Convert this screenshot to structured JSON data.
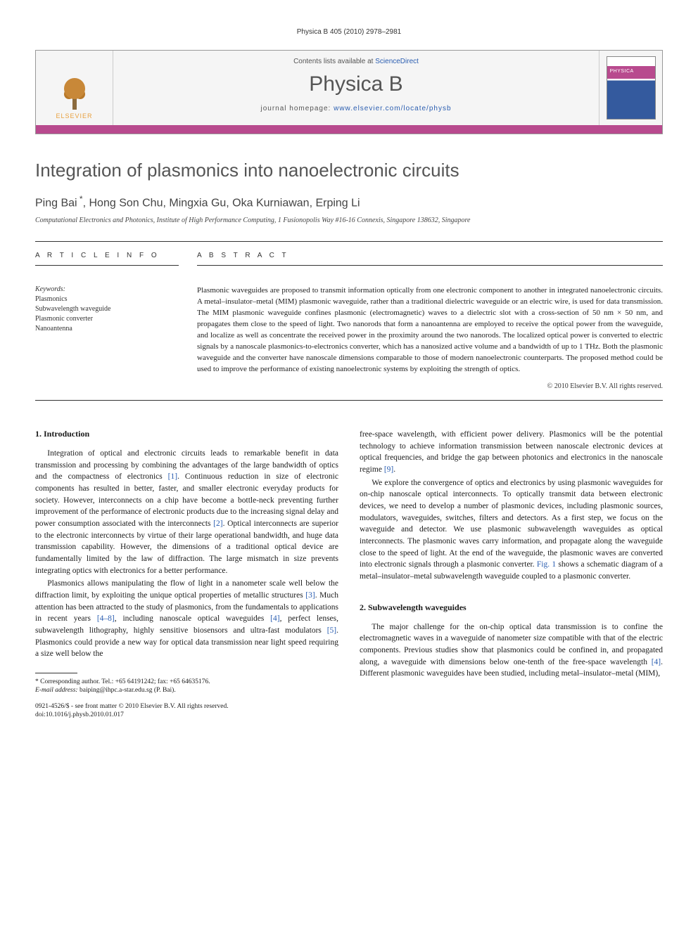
{
  "running_header": "Physica B 405 (2010) 2978–2981",
  "banner": {
    "publisher": "ELSEVIER",
    "contents_prefix": "Contents lists available at ",
    "contents_link": "ScienceDirect",
    "journal_title": "Physica B",
    "homepage_prefix": "journal homepage: ",
    "homepage_url": "www.elsevier.com/locate/physb",
    "cover_label": "PHYSICA"
  },
  "colors": {
    "accent_bar": "#b84a8e",
    "link": "#2a5db0",
    "elsevier_orange": "#e8a03e",
    "text": "#1a1a1a",
    "muted": "#555555"
  },
  "article": {
    "title": "Integration of plasmonics into nanoelectronic circuits",
    "authors_html": "Ping Bai *, Hong Son Chu, Mingxia Gu, Oka Kurniawan, Erping Li",
    "affiliation": "Computational Electronics and Photonics, Institute of High Performance Computing, 1 Fusionopolis Way #16-16 Connexis, Singapore 138632, Singapore"
  },
  "info": {
    "label": "A R T I C L E  I N F O",
    "keywords_label": "Keywords:",
    "keywords": [
      "Plasmonics",
      "Subwavelength waveguide",
      "Plasmonic converter",
      "Nanoantenna"
    ]
  },
  "abstract": {
    "label": "A B S T R A C T",
    "text": "Plasmonic waveguides are proposed to transmit information optically from one electronic component to another in integrated nanoelectronic circuits. A metal–insulator–metal (MIM) plasmonic waveguide, rather than a traditional dielectric waveguide or an electric wire, is used for data transmission. The MIM plasmonic waveguide confines plasmonic (electromagnetic) waves to a dielectric slot with a cross-section of 50 nm × 50 nm, and propagates them close to the speed of light. Two nanorods that form a nanoantenna are employed to receive the optical power from the waveguide, and localize as well as concentrate the received power in the proximity around the two nanorods. The localized optical power is converted to electric signals by a nanoscale plasmonics-to-electronics converter, which has a nanosized active volume and a bandwidth of up to 1 THz. Both the plasmonic waveguide and the converter have nanoscale dimensions comparable to those of modern nanoelectronic counterparts. The proposed method could be used to improve the performance of existing nanoelectronic systems by exploiting the strength of optics.",
    "copyright": "© 2010 Elsevier B.V. All rights reserved."
  },
  "body": {
    "sec1_heading": "1. Introduction",
    "sec1_p1": "Integration of optical and electronic circuits leads to remarkable benefit in data transmission and processing by combining the advantages of the large bandwidth of optics and the compactness of electronics [1]. Continuous reduction in size of electronic components has resulted in better, faster, and smaller electronic everyday products for society. However, interconnects on a chip have become a bottle-neck preventing further improvement of the performance of electronic products due to the increasing signal delay and power consumption associated with the interconnects [2]. Optical interconnects are superior to the electronic interconnects by virtue of their large operational bandwidth, and huge data transmission capability. However, the dimensions of a traditional optical device are fundamentally limited by the law of diffraction. The large mismatch in size prevents integrating optics with electronics for a better performance.",
    "sec1_p2": "Plasmonics allows manipulating the flow of light in a nanometer scale well below the diffraction limit, by exploiting the unique optical properties of metallic structures [3]. Much attention has been attracted to the study of plasmonics, from the fundamentals to applications in recent years [4–8], including nanoscale optical waveguides [4], perfect lenses, subwavelength lithography, highly sensitive biosensors and ultra-fast modulators [5]. Plasmonics could provide a new way for optical data transmission near light speed requiring a size well below the",
    "col2_p1": "free-space wavelength, with efficient power delivery. Plasmonics will be the potential technology to achieve information transmission between nanoscale electronic devices at optical frequencies, and bridge the gap between photonics and electronics in the nanoscale regime [9].",
    "col2_p2": "We explore the convergence of optics and electronics by using plasmonic waveguides for on-chip nanoscale optical interconnects. To optically transmit data between electronic devices, we need to develop a number of plasmonic devices, including plasmonic sources, modulators, waveguides, switches, filters and detectors. As a first step, we focus on the waveguide and detector. We use plasmonic subwavelength waveguides as optical interconnects. The plasmonic waves carry information, and propagate along the waveguide close to the speed of light. At the end of the waveguide, the plasmonic waves are converted into electronic signals through a plasmonic converter. Fig. 1 shows a schematic diagram of a metal–insulator–metal subwavelength waveguide coupled to a plasmonic converter.",
    "sec2_heading": "2. Subwavelength waveguides",
    "sec2_p1": "The major challenge for the on-chip optical data transmission is to confine the electromagnetic waves in a waveguide of nanometer size compatible with that of the electric components. Previous studies show that plasmonics could be confined in, and propagated along, a waveguide with dimensions below one-tenth of the free-space wavelength [4]. Different plasmonic waveguides have been studied, including metal–insulator–metal (MIM),"
  },
  "footnote": {
    "corr": "* Corresponding author. Tel.: +65 64191242; fax: +65 64635176.",
    "email_label": "E-mail address:",
    "email": "baiping@ihpc.a-star.edu.sg (P. Bai)."
  },
  "doi": {
    "line1": "0921-4526/$ - see front matter © 2010 Elsevier B.V. All rights reserved.",
    "line2": "doi:10.1016/j.physb.2010.01.017"
  }
}
